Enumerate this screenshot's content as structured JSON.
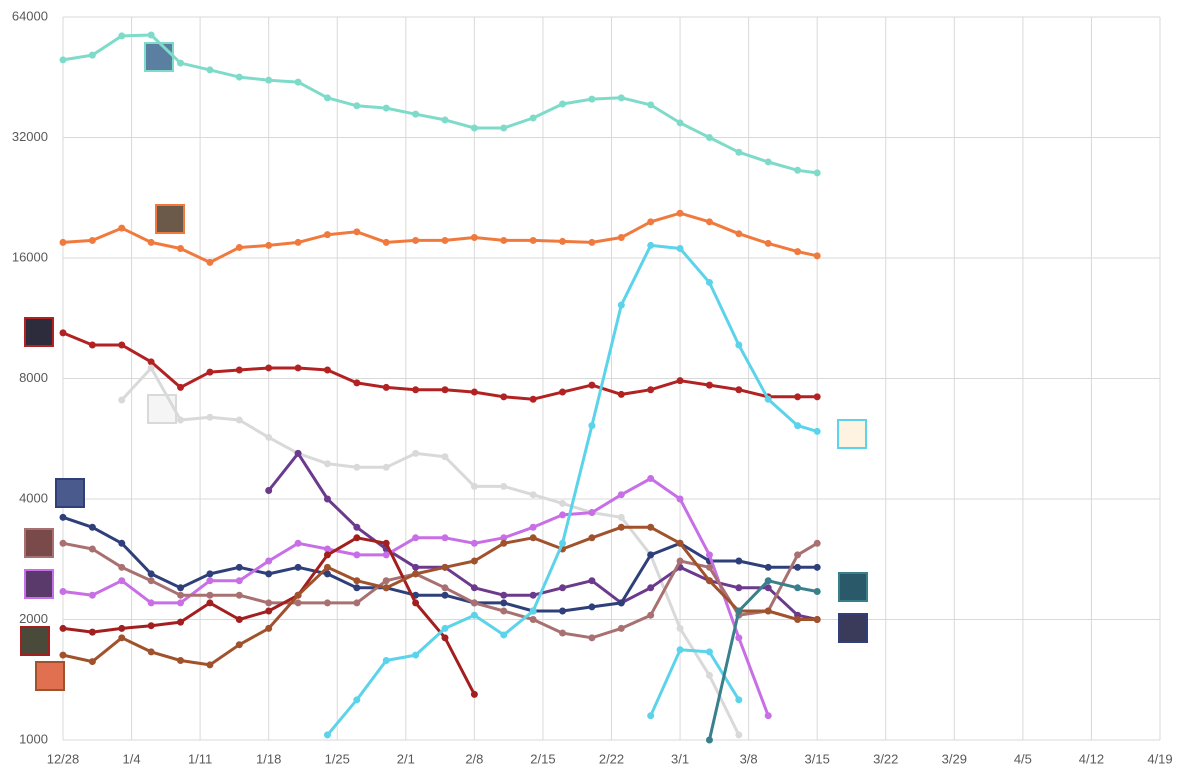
{
  "chart_data": {
    "type": "line",
    "log_scale": true,
    "grid": true,
    "x": [
      "12/28",
      "12/31",
      "1/3",
      "1/6",
      "1/9",
      "1/12",
      "1/15",
      "1/18",
      "1/21",
      "1/24",
      "1/27",
      "1/30",
      "2/2",
      "2/5",
      "2/8",
      "2/11",
      "2/14",
      "2/17",
      "2/20",
      "2/23",
      "2/26",
      "3/1",
      "3/4",
      "3/7",
      "3/10",
      "3/13",
      "3/15"
    ],
    "xlim": [
      "12/28",
      "4/19"
    ],
    "xticks": [
      "12/28",
      "1/4",
      "1/11",
      "1/18",
      "1/25",
      "2/1",
      "2/8",
      "2/15",
      "2/22",
      "3/1",
      "3/8",
      "3/15",
      "3/22",
      "3/29",
      "4/5",
      "4/12",
      "4/19"
    ],
    "ylim": [
      1000,
      64000
    ],
    "yticks": [
      1000,
      2000,
      4000,
      8000,
      16000,
      32000,
      64000
    ],
    "series": [
      {
        "color": "#7fdbc9",
        "values": [
          50000,
          51400,
          57400,
          57700,
          49100,
          47200,
          45300,
          44500,
          44000,
          40200,
          38400,
          37900,
          36600,
          35400,
          33800,
          33800,
          35800,
          38800,
          39900,
          40200,
          38600,
          34800,
          32000,
          29400,
          27800,
          26500,
          26100
        ]
      },
      {
        "color": "#f07a3e",
        "values": [
          17500,
          17700,
          19000,
          17500,
          16900,
          15600,
          17000,
          17200,
          17500,
          18300,
          18600,
          17500,
          17700,
          17700,
          18000,
          17700,
          17700,
          17600,
          17500,
          18000,
          19700,
          20700,
          19700,
          18400,
          17400,
          16600,
          16200
        ]
      },
      {
        "color": "#b22222",
        "values": [
          10400,
          9700,
          9700,
          8800,
          7600,
          8300,
          8400,
          8500,
          8500,
          8400,
          7800,
          7600,
          7500,
          7500,
          7400,
          7200,
          7100,
          7400,
          7700,
          7300,
          7500,
          7900,
          7700,
          7500,
          7200,
          7200,
          7200
        ]
      },
      {
        "color": "#d9d9d9",
        "values": [
          null,
          null,
          7070,
          8500,
          6300,
          6400,
          6300,
          5700,
          5200,
          4900,
          4800,
          4800,
          5200,
          5100,
          4300,
          4300,
          4100,
          3900,
          3700,
          3600,
          2900,
          1900,
          1450,
          1030,
          null,
          null,
          null
        ]
      },
      {
        "color": "#6b3a8c",
        "values": [
          null,
          null,
          null,
          null,
          null,
          null,
          null,
          4200,
          5200,
          4000,
          3400,
          3000,
          2700,
          2700,
          2400,
          2300,
          2300,
          2400,
          2500,
          2200,
          2400,
          2700,
          2500,
          2400,
          2400,
          2050,
          2000
        ]
      },
      {
        "color": "#2e3f7a",
        "values": [
          3600,
          3400,
          3100,
          2600,
          2400,
          2600,
          2700,
          2600,
          2700,
          2600,
          2400,
          2400,
          2300,
          2300,
          2200,
          2200,
          2100,
          2100,
          2150,
          2200,
          2900,
          3100,
          2800,
          2800,
          2700,
          2700,
          2700
        ]
      },
      {
        "color": "#c86ee6",
        "values": [
          2350,
          2300,
          2500,
          2200,
          2200,
          2500,
          2500,
          2800,
          3100,
          3000,
          2900,
          2900,
          3200,
          3200,
          3100,
          3200,
          3400,
          3650,
          3700,
          4100,
          4500,
          4000,
          2900,
          1800,
          1150,
          null,
          null
        ]
      },
      {
        "color": "#a87070",
        "values": [
          3100,
          3000,
          2700,
          2500,
          2300,
          2300,
          2300,
          2200,
          2200,
          2200,
          2200,
          2500,
          2600,
          2400,
          2200,
          2100,
          2000,
          1850,
          1800,
          1900,
          2050,
          2800,
          2700,
          2050,
          2100,
          2900,
          3100
        ]
      },
      {
        "color": "#a31f1f",
        "values": [
          1900,
          1860,
          1900,
          1930,
          1970,
          2200,
          2000,
          2100,
          2300,
          2900,
          3200,
          3100,
          2200,
          1800,
          1300,
          null,
          null,
          null,
          null,
          null,
          null,
          null,
          null,
          null,
          null,
          null,
          null
        ]
      },
      {
        "color": "#a0522d",
        "values": [
          1630,
          1570,
          1800,
          1660,
          1580,
          1540,
          1730,
          1900,
          2300,
          2700,
          2500,
          2400,
          2600,
          2700,
          2800,
          3100,
          3200,
          3000,
          3200,
          3400,
          3400,
          3100,
          2500,
          2100,
          2100,
          2000,
          2000
        ]
      },
      {
        "color": "#5bd3ea",
        "values": [
          null,
          null,
          null,
          null,
          null,
          null,
          null,
          null,
          null,
          1030,
          1260,
          1580,
          1630,
          1900,
          2050,
          1830,
          2100,
          3100,
          6100,
          12200,
          17200,
          16900,
          13900,
          9700,
          7100,
          6100,
          5900
        ]
      },
      {
        "color": "#5bd3ea",
        "values": [
          null,
          null,
          null,
          null,
          null,
          null,
          null,
          null,
          null,
          null,
          null,
          null,
          null,
          null,
          null,
          null,
          null,
          null,
          null,
          null,
          1150,
          1680,
          1660,
          1260,
          null,
          null,
          null
        ]
      },
      {
        "color": "#3a7f8c",
        "values": [
          null,
          null,
          null,
          null,
          null,
          null,
          null,
          null,
          null,
          null,
          null,
          null,
          null,
          null,
          null,
          null,
          null,
          null,
          null,
          null,
          null,
          null,
          1000,
          2100,
          2500,
          2400,
          2350
        ]
      }
    ]
  }
}
